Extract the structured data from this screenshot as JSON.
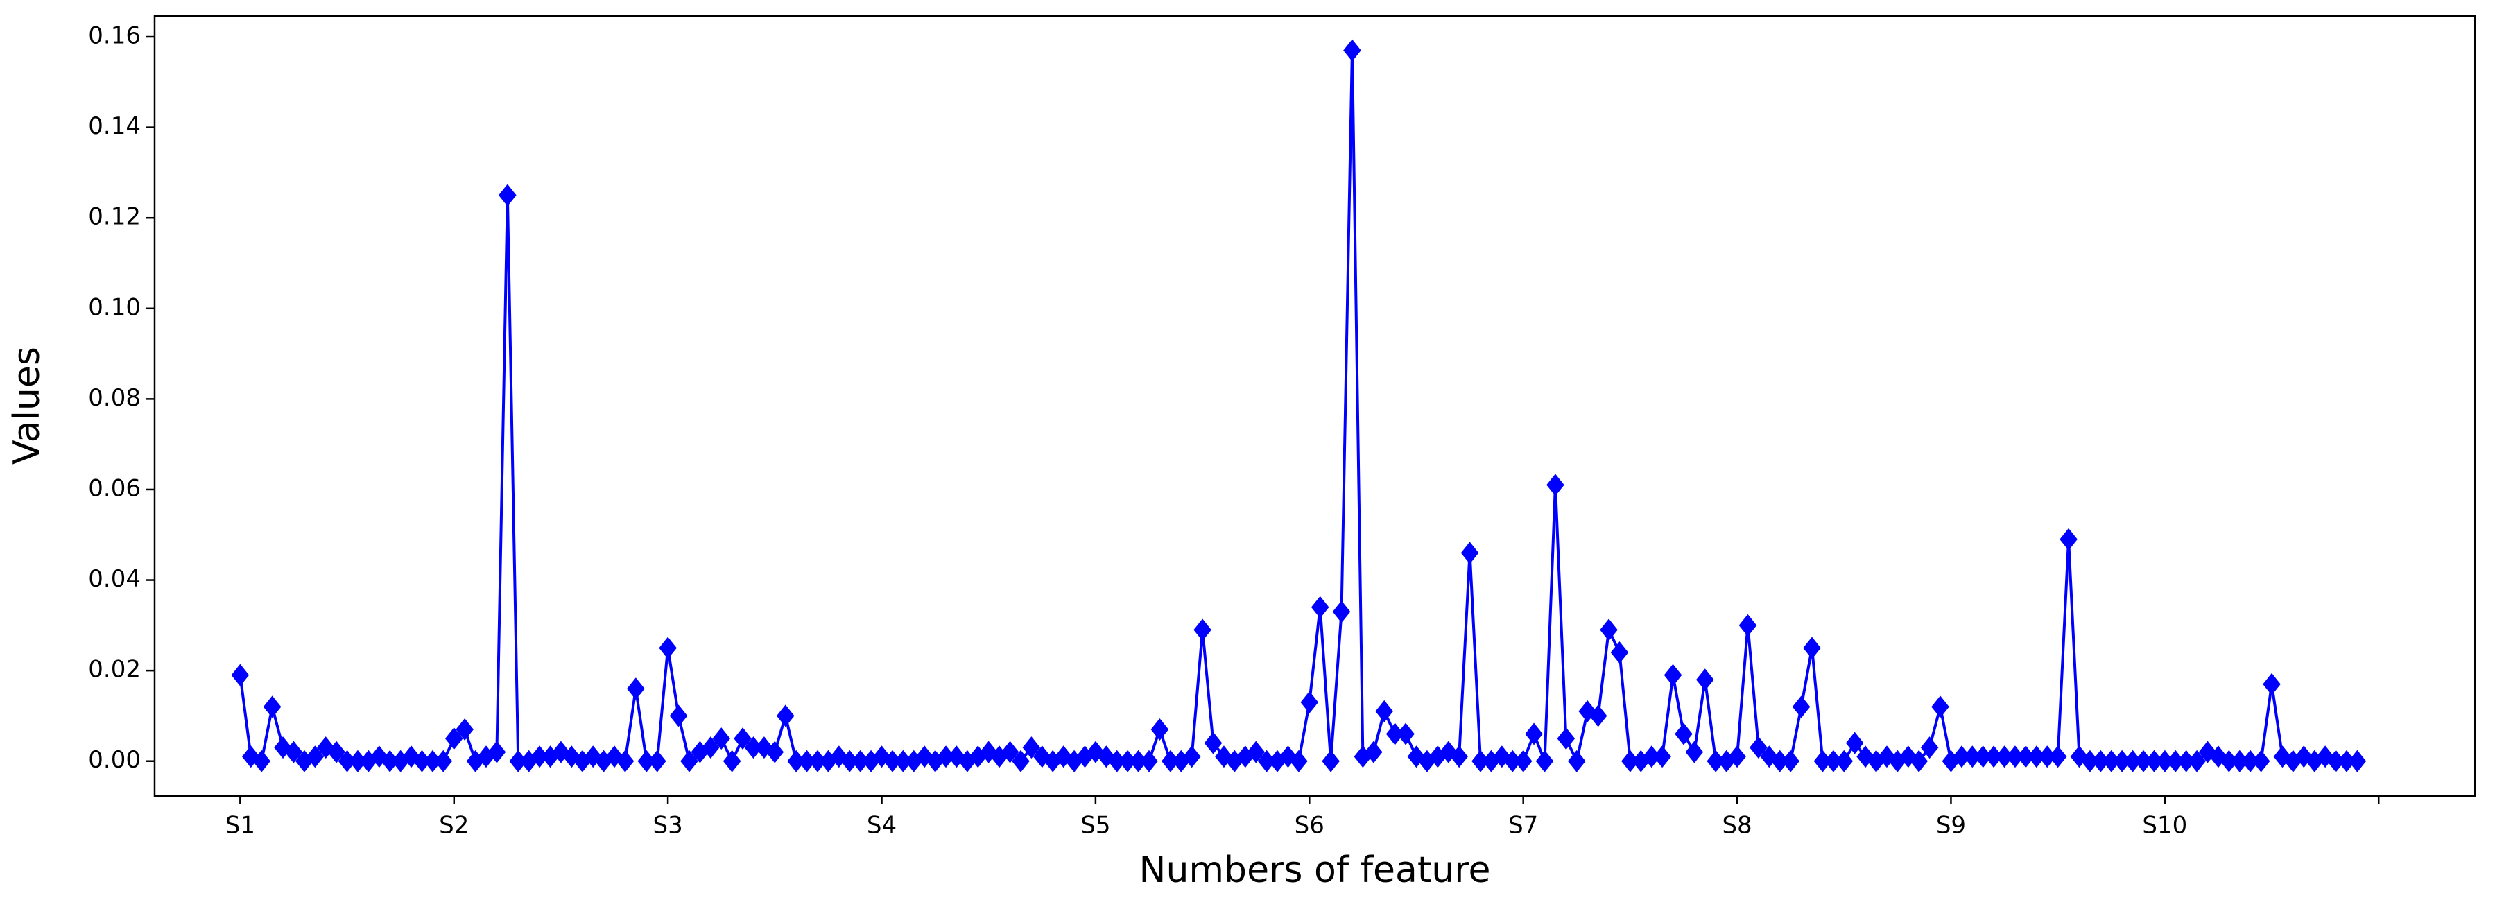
{
  "chart_data": {
    "type": "line",
    "x_label": "Numbers of feature",
    "y_label": "Values",
    "color": "#0000ff",
    "marker": "diamond",
    "values": [
      0.019,
      0.001,
      0.0,
      0.012,
      0.003,
      0.002,
      0.0,
      0.001,
      0.003,
      0.002,
      0.0,
      0.0,
      0.0,
      0.001,
      0.0,
      0.0,
      0.001,
      0.0,
      0.0,
      0.0,
      0.005,
      0.007,
      0.0,
      0.001,
      0.002,
      0.125,
      0.0,
      0.0,
      0.001,
      0.001,
      0.002,
      0.001,
      0.0,
      0.001,
      0.0,
      0.001,
      0.0,
      0.016,
      0.0,
      0.0,
      0.025,
      0.01,
      0.0,
      0.002,
      0.003,
      0.005,
      0.0,
      0.005,
      0.003,
      0.003,
      0.002,
      0.01,
      0.0,
      0.0,
      0.0,
      0.0,
      0.001,
      0.0,
      0.0,
      0.0,
      0.001,
      0.0,
      0.0,
      0.0,
      0.001,
      0.0,
      0.001,
      0.001,
      0.0,
      0.001,
      0.002,
      0.001,
      0.002,
      0.0,
      0.003,
      0.001,
      0.0,
      0.001,
      0.0,
      0.001,
      0.002,
      0.001,
      0.0,
      0.0,
      0.0,
      0.0,
      0.007,
      0.0,
      0.0,
      0.001,
      0.029,
      0.004,
      0.001,
      0.0,
      0.001,
      0.002,
      0.0,
      0.0,
      0.001,
      0.0,
      0.013,
      0.034,
      0.0,
      0.033,
      0.157,
      0.001,
      0.002,
      0.011,
      0.006,
      0.006,
      0.001,
      0.0,
      0.001,
      0.002,
      0.001,
      0.046,
      0.0,
      0.0,
      0.001,
      0.0,
      0.0,
      0.006,
      0.0,
      0.061,
      0.005,
      0.0,
      0.011,
      0.01,
      0.029,
      0.024,
      0.0,
      0.0,
      0.001,
      0.001,
      0.019,
      0.006,
      0.002,
      0.018,
      0.0,
      0.0,
      0.001,
      0.03,
      0.003,
      0.001,
      0.0,
      0.0,
      0.012,
      0.025,
      0.0,
      0.0,
      0.0,
      0.004,
      0.001,
      0.0,
      0.001,
      0.0,
      0.001,
      0.0,
      0.003,
      0.012,
      0.0,
      0.001,
      0.001,
      0.001,
      0.001,
      0.001,
      0.001,
      0.001,
      0.001,
      0.001,
      0.001,
      0.049,
      0.001,
      0.0,
      0.0,
      0.0,
      0.0,
      0.0,
      0.0,
      0.0,
      0.0,
      0.0,
      0.0,
      0.0,
      0.002,
      0.001,
      0.0,
      0.0,
      0.0,
      0.0,
      0.017,
      0.001,
      0.0,
      0.001,
      0.0,
      0.001,
      0.0,
      0.0,
      0.0
    ],
    "xlim": [
      -8,
      209
    ],
    "xticks": [
      0,
      20,
      40,
      60,
      80,
      100,
      120,
      140,
      160,
      180,
      200
    ],
    "xtick_labels": [
      "S1",
      "S2",
      "S3",
      "S4",
      "S5",
      "S6",
      "S7",
      "S8",
      "S9",
      "S10",
      null
    ],
    "ylim": [
      -0.0077,
      0.1646
    ],
    "yticks": [
      {
        "value": 0,
        "label": "0.00"
      },
      {
        "value": 0.02,
        "label": "0.02"
      },
      {
        "value": 0.04,
        "label": "0.04"
      },
      {
        "value": 0.06,
        "label": "0.06"
      },
      {
        "value": 0.08,
        "label": "0.08"
      },
      {
        "value": 0.1,
        "label": "0.10"
      },
      {
        "value": 0.12,
        "label": "0.12"
      },
      {
        "value": 0.14,
        "label": "0.14"
      },
      {
        "value": 0.16,
        "label": "0.16"
      }
    ],
    "grid": false
  }
}
